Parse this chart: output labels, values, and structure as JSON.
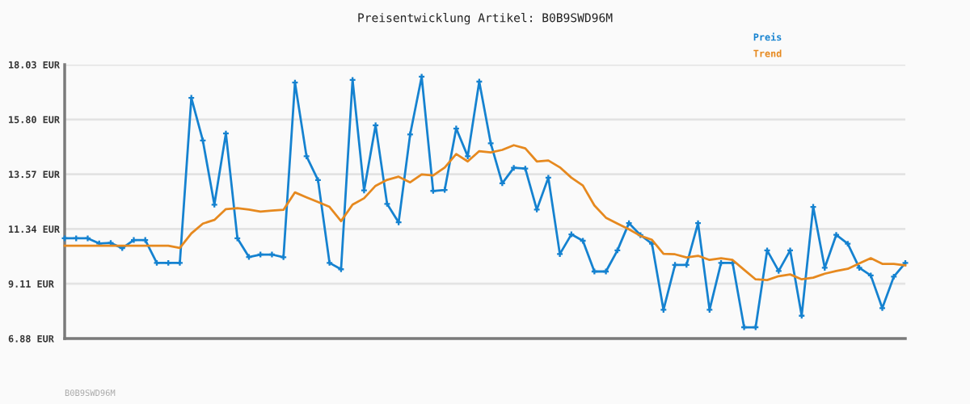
{
  "chart_data": {
    "type": "line",
    "title": "Preisentwicklung Artikel: B0B9SWD96M",
    "categories": [
      null,
      null,
      null,
      null,
      null,
      null,
      null,
      null,
      null,
      null,
      null,
      null,
      null,
      null,
      null,
      null,
      null,
      null,
      null,
      null,
      null,
      null,
      null,
      null,
      null,
      null,
      null,
      null,
      null,
      null,
      null,
      null,
      null,
      null,
      null,
      null,
      null,
      null,
      null,
      null,
      null,
      null,
      null,
      null,
      null,
      null,
      null,
      null,
      null,
      null,
      null,
      null,
      null,
      null,
      null,
      null,
      null,
      null,
      null,
      null,
      null,
      null,
      null,
      null,
      null,
      null,
      null,
      null,
      null,
      null,
      null,
      null,
      null,
      null
    ],
    "series": [
      {
        "name": "Preis",
        "color": "#1582d0",
        "marker": "cross",
        "values": [
          10.96,
          10.96,
          10.96,
          10.75,
          10.77,
          10.56,
          10.89,
          10.89,
          9.96,
          9.96,
          9.96,
          16.68,
          14.94,
          12.33,
          15.23,
          10.96,
          10.2,
          10.3,
          10.3,
          10.19,
          17.3,
          14.3,
          13.33,
          9.96,
          9.7,
          17.41,
          12.91,
          15.56,
          12.36,
          11.61,
          15.19,
          17.54,
          12.89,
          12.93,
          15.43,
          14.3,
          17.34,
          14.83,
          13.2,
          13.83,
          13.8,
          12.13,
          13.43,
          10.32,
          11.12,
          10.86,
          9.61,
          9.61,
          10.47,
          11.58,
          11.09,
          10.74,
          8.05,
          9.88,
          9.88,
          11.58,
          8.05,
          9.96,
          9.96,
          7.34,
          7.34,
          10.47,
          9.63,
          10.47,
          7.81,
          12.24,
          9.76,
          11.1,
          10.74,
          9.76,
          9.45,
          8.12,
          9.4,
          9.96
        ]
      },
      {
        "name": "Trend",
        "color": "#e6891f",
        "values": [
          10.66,
          10.66,
          10.66,
          10.66,
          10.66,
          10.66,
          10.66,
          10.66,
          10.66,
          10.66,
          10.57,
          11.16,
          11.56,
          11.71,
          12.15,
          12.19,
          12.13,
          12.05,
          12.09,
          12.12,
          12.83,
          12.63,
          12.44,
          12.24,
          11.66,
          12.33,
          12.59,
          13.1,
          13.34,
          13.47,
          13.24,
          13.56,
          13.52,
          13.84,
          14.39,
          14.09,
          14.51,
          14.46,
          14.56,
          14.75,
          14.62,
          14.09,
          14.13,
          13.85,
          13.43,
          13.11,
          12.3,
          11.8,
          11.56,
          11.33,
          11.06,
          10.9,
          10.33,
          10.31,
          10.18,
          10.25,
          10.08,
          10.15,
          10.08,
          9.68,
          9.29,
          9.26,
          9.42,
          9.49,
          9.29,
          9.36,
          9.52,
          9.63,
          9.72,
          9.94,
          10.15,
          9.92,
          9.92,
          9.86
        ]
      }
    ],
    "ylim": [
      6.88,
      18.03
    ],
    "yticks": [
      {
        "value": 6.88,
        "label": "6.88 EUR"
      },
      {
        "value": 9.11,
        "label": "9.11 EUR"
      },
      {
        "value": 11.34,
        "label": "11.34 EUR"
      },
      {
        "value": 13.57,
        "label": "13.57 EUR"
      },
      {
        "value": 15.8,
        "label": "15.80 EUR"
      },
      {
        "value": 18.03,
        "label": "18.03 EUR"
      }
    ],
    "grid": "y",
    "legend": "top right",
    "tick_labels": "y",
    "line_style": "solid",
    "annotations": [
      "B0B9SWD96M"
    ]
  }
}
